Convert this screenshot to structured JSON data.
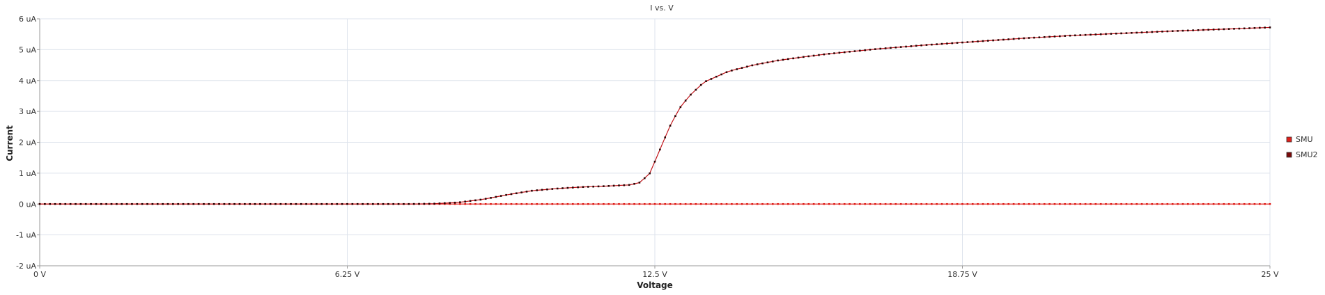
{
  "chart_data": {
    "type": "line",
    "title": "I vs. V",
    "xlabel": "Voltage",
    "ylabel": "Current",
    "xlim": [
      0,
      25
    ],
    "ylim": [
      -2,
      6
    ],
    "x_ticks": [
      0,
      6.25,
      12.5,
      18.75,
      25
    ],
    "x_tick_labels": [
      "0 V",
      "6.25 V",
      "12.5 V",
      "18.75 V",
      "25 V"
    ],
    "y_ticks": [
      -2,
      -1,
      0,
      1,
      2,
      3,
      4,
      5,
      6
    ],
    "y_tick_labels": [
      "-2 uA",
      "-1 uA",
      "0 uA",
      "1 uA",
      "2 uA",
      "3 uA",
      "4 uA",
      "5 uA",
      "6 uA"
    ],
    "grid": true,
    "legend_position": "right",
    "marker_count": 241,
    "series": [
      {
        "name": "SMU",
        "color": "#e0201b",
        "x": [
          0,
          25
        ],
        "y": [
          0,
          0
        ]
      },
      {
        "name": "SMU2",
        "color": "#7a0a0a",
        "x": [
          0,
          7.5,
          8.0,
          8.5,
          9.0,
          9.5,
          10.0,
          10.5,
          11.0,
          11.5,
          12.0,
          12.2,
          12.4,
          12.6,
          12.8,
          13.0,
          13.2,
          13.5,
          14.0,
          14.5,
          15.0,
          15.5,
          16.0,
          17.0,
          18.0,
          19.0,
          20.0,
          21.0,
          22.0,
          23.0,
          24.0,
          25.0
        ],
        "y": [
          0,
          0,
          0.01,
          0.05,
          0.15,
          0.3,
          0.43,
          0.5,
          0.55,
          0.58,
          0.62,
          0.7,
          1.0,
          1.75,
          2.5,
          3.1,
          3.5,
          3.95,
          4.3,
          4.5,
          4.65,
          4.76,
          4.86,
          5.02,
          5.15,
          5.26,
          5.37,
          5.46,
          5.53,
          5.6,
          5.66,
          5.72
        ]
      }
    ]
  }
}
